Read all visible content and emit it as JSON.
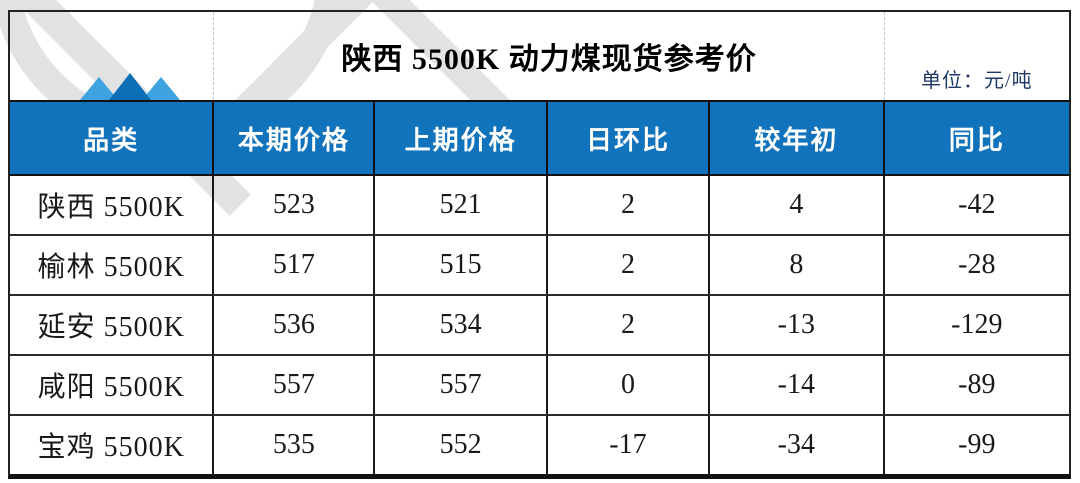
{
  "title": "陕西 5500K 动力煤现货参考价",
  "unit_label": "单位：元/吨",
  "colors": {
    "header_bg": "#1173bc",
    "unit_text": "#1f3864",
    "logo_light": "#3fa3df",
    "logo_dark": "#0e6fb6",
    "watermark": "#e2e2e2"
  },
  "icons": {
    "logo": "mountain-peaks-icon"
  },
  "table": {
    "columns": [
      "品类",
      "本期价格",
      "上期价格",
      "日环比",
      "较年初",
      "同比"
    ],
    "rows": [
      {
        "category": "陕西 5500K",
        "current": "523",
        "previous": "521",
        "dod": "2",
        "ytd": "4",
        "yoy": "-42"
      },
      {
        "category": "榆林 5500K",
        "current": "517",
        "previous": "515",
        "dod": "2",
        "ytd": "8",
        "yoy": "-28"
      },
      {
        "category": "延安 5500K",
        "current": "536",
        "previous": "534",
        "dod": "2",
        "ytd": "-13",
        "yoy": "-129"
      },
      {
        "category": "咸阳 5500K",
        "current": "557",
        "previous": "557",
        "dod": "0",
        "ytd": "-14",
        "yoy": "-89"
      },
      {
        "category": "宝鸡 5500K",
        "current": "535",
        "previous": "552",
        "dod": "-17",
        "ytd": "-34",
        "yoy": "-99"
      }
    ]
  }
}
